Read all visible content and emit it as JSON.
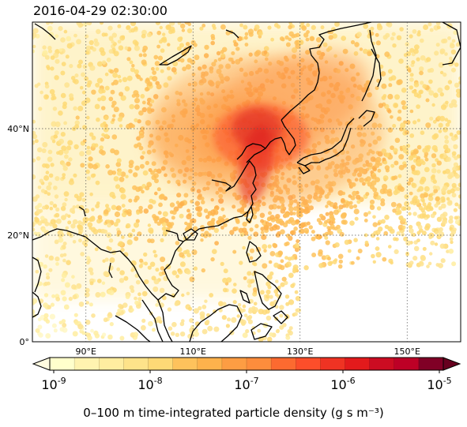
{
  "title": "2016-04-29 02:30:00",
  "map": {
    "lat_labels": [
      "40°N",
      "20°N",
      "0°"
    ],
    "lat_values": [
      40,
      20,
      0
    ],
    "lon_labels": [
      "90°E",
      "110°E",
      "130°E",
      "150°E"
    ],
    "lon_values": [
      90,
      110,
      130,
      150
    ],
    "extent": {
      "lon_min": 80,
      "lon_max": 160,
      "lat_min": 0,
      "lat_max": 60
    },
    "source_lon": 122,
    "source_lat": 37,
    "plume_direction": "north-east"
  },
  "colorbar": {
    "tick_labels": [
      {
        "base": "10",
        "exp": "-9"
      },
      {
        "base": "10",
        "exp": "-8"
      },
      {
        "base": "10",
        "exp": "-7"
      },
      {
        "base": "10",
        "exp": "-6"
      },
      {
        "base": "10",
        "exp": "-5"
      }
    ],
    "label": "0–100 m time-integrated particle density (g s m⁻³)",
    "scale": "log",
    "colors": [
      "#ffffcc",
      "#fff3b0",
      "#ffeda0",
      "#fee38a",
      "#fed976",
      "#fec25c",
      "#feb24c",
      "#fd9d43",
      "#fd8d3c",
      "#fc6a30",
      "#fc4e2a",
      "#ef3323",
      "#e31a1c",
      "#cc0c22",
      "#bd0026",
      "#800026"
    ]
  }
}
